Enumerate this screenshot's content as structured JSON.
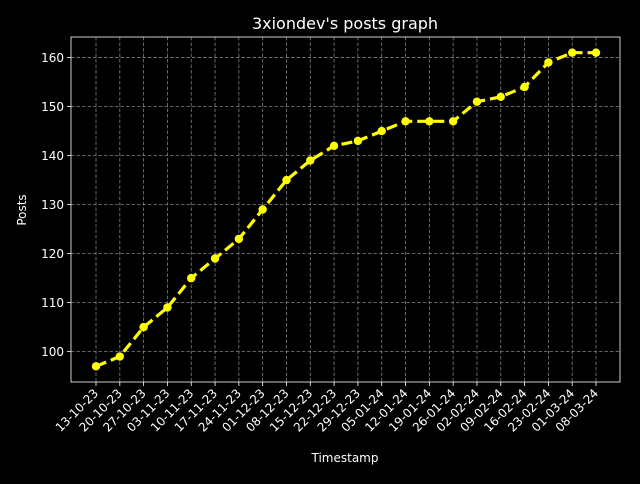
{
  "chart_data": {
    "type": "line",
    "title": "3xiondev's posts graph",
    "xlabel": "Timestamp",
    "ylabel": "Posts",
    "categories": [
      "13-10-23",
      "20-10-23",
      "27-10-23",
      "03-11-23",
      "10-11-23",
      "17-11-23",
      "24-11-23",
      "01-12-23",
      "08-12-23",
      "15-12-23",
      "22-12-23",
      "29-12-23",
      "05-01-24",
      "12-01-24",
      "19-01-24",
      "26-01-24",
      "02-02-24",
      "09-02-24",
      "16-02-24",
      "23-02-24",
      "01-03-24",
      "08-03-24"
    ],
    "series": [
      {
        "values": [
          97,
          99,
          105,
          109,
          115,
          119,
          123,
          129,
          135,
          139,
          142,
          143,
          145,
          147,
          147,
          147,
          151,
          152,
          154,
          159,
          161,
          161
        ]
      }
    ],
    "ylim": [
      93.8,
      164.2
    ],
    "yticks": [
      100,
      110,
      120,
      130,
      140,
      150,
      160
    ],
    "grid": true,
    "line_style": "dashed",
    "marker": "circle",
    "colors": {
      "background": "#000000",
      "line": "#ffff00",
      "grid": "#808080",
      "text": "#ffffff"
    }
  }
}
